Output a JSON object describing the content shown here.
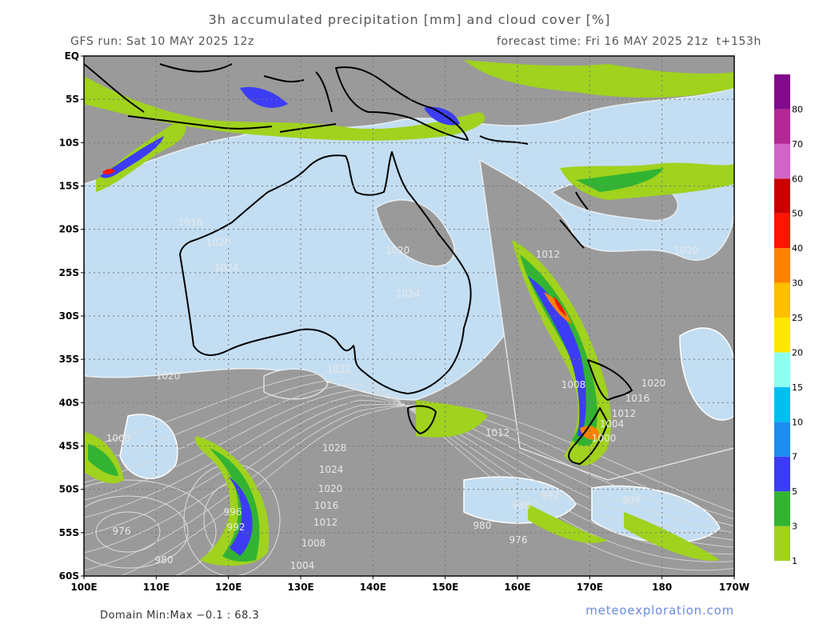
{
  "header": {
    "title": "3h accumulated precipitation [mm] and cloud cover [%]",
    "run": "GFS run: Sat 10 MAY 2025 12z",
    "forecast": "forecast time: Fri 16 MAY 2025 21z  t+153h"
  },
  "map": {
    "lat_ticks": [
      "EQ",
      "5S",
      "10S",
      "15S",
      "20S",
      "25S",
      "30S",
      "35S",
      "40S",
      "45S",
      "50S",
      "55S",
      "60S"
    ],
    "lon_ticks": [
      "100E",
      "110E",
      "120E",
      "130E",
      "140E",
      "150E",
      "160E",
      "170E",
      "180",
      "170W"
    ],
    "isobar_labels": [
      1016,
      1020,
      1024,
      1020,
      1024,
      1032,
      1020,
      1028,
      1024,
      1020,
      1016,
      1012,
      1008,
      1004,
      1000,
      996,
      992,
      976,
      980,
      1008,
      1016,
      1020,
      1012,
      1004,
      1000,
      1012,
      988,
      992,
      980,
      976,
      996,
      1012,
      1020
    ]
  },
  "colorbar": {
    "levels": [
      1,
      3,
      5,
      7,
      10,
      15,
      20,
      25,
      30,
      40,
      50,
      60,
      70,
      80
    ],
    "colors": [
      "#a0d21e",
      "#32b432",
      "#3c3cf5",
      "#1e8cf0",
      "#00bef0",
      "#8cfff0",
      "#ffe600",
      "#ffbe00",
      "#ff8200",
      "#ff1400",
      "#c80000",
      "#d264c8",
      "#b42896",
      "#820a8c"
    ]
  },
  "footer": {
    "domain": "Domain Min:Max −0.1 : 68.3",
    "credit": "meteoexploration.com"
  }
}
